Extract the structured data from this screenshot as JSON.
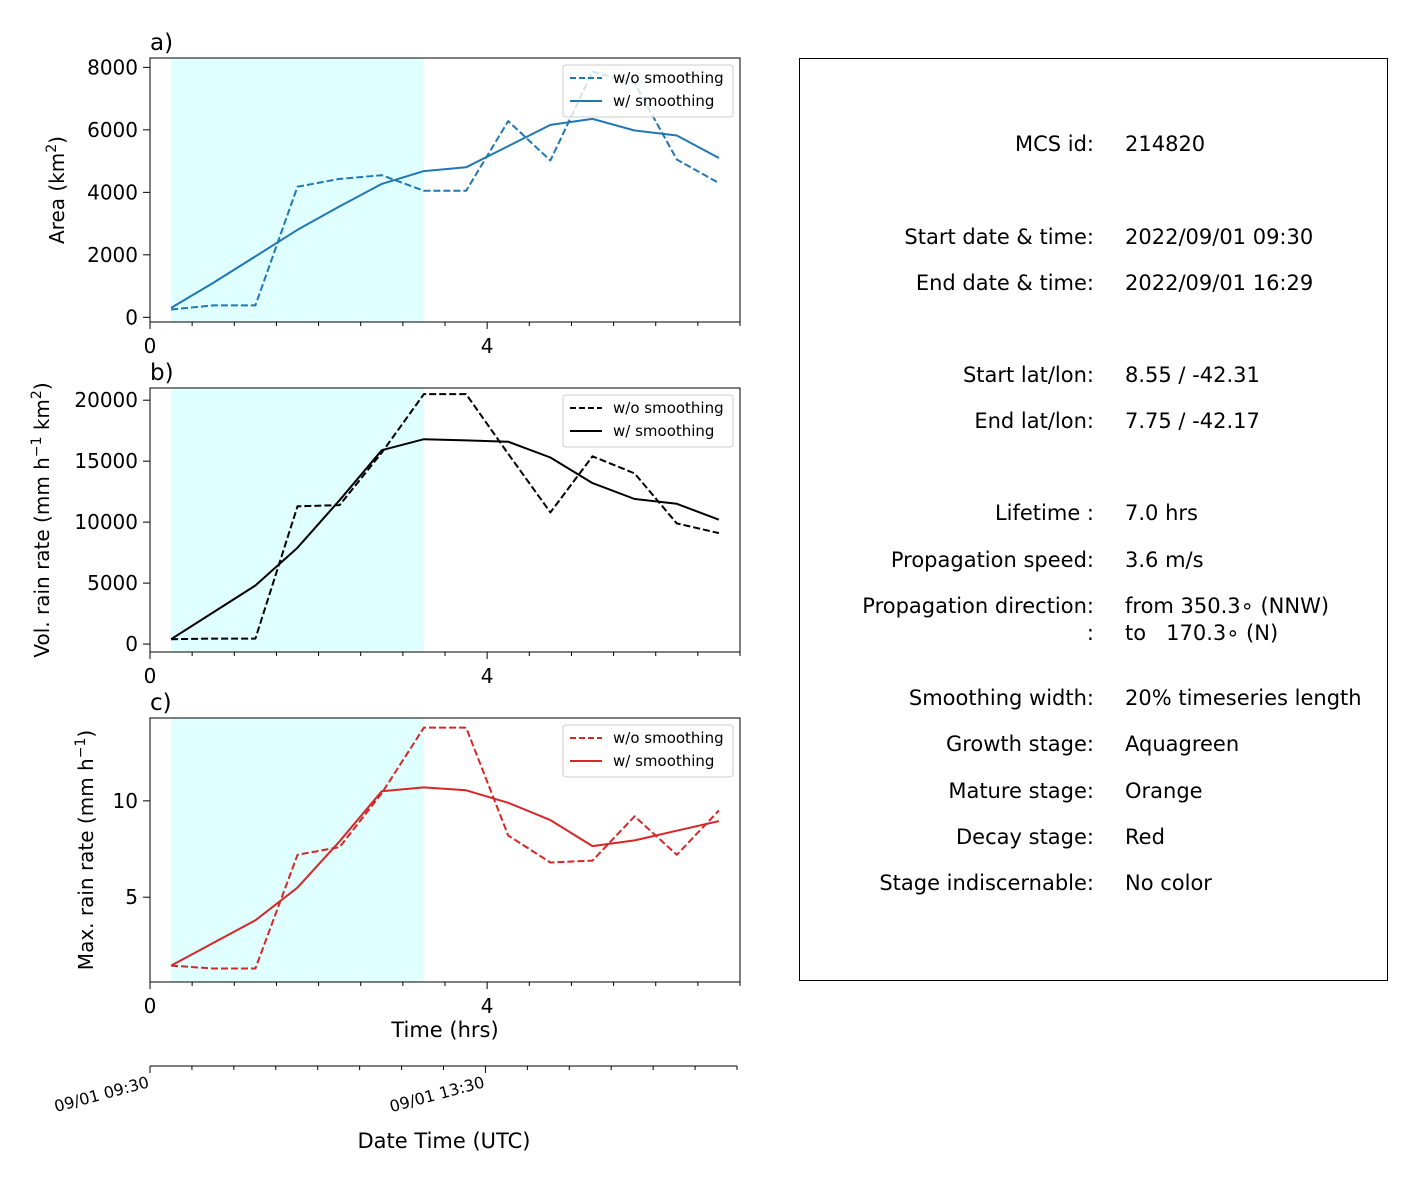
{
  "chart_data": [
    {
      "type": "line",
      "panel_letter": "a)",
      "ylabel_main": "Area  (km",
      "ylabel_sup": "2",
      "ylabel_tail": ")",
      "xlim": [
        0,
        7
      ],
      "ylim": [
        -150,
        8300
      ],
      "yticks": [
        0,
        2000,
        4000,
        6000,
        8000
      ],
      "ytick_labels": [
        "0",
        "2000",
        "4000",
        "6000",
        "8000"
      ],
      "xtick_labels": [
        "0",
        "4"
      ],
      "color": "#1f77b4",
      "legend_position": "top-right",
      "shaded_span": [
        0.25,
        3.25
      ],
      "series": [
        {
          "name": "w/o smoothing",
          "style": "dashed",
          "x": [
            0.25,
            0.75,
            1.25,
            1.75,
            2.25,
            2.75,
            3.25,
            3.75,
            4.25,
            4.75,
            5.25,
            5.75,
            6.25,
            6.75
          ],
          "values": [
            250,
            380,
            380,
            4180,
            4430,
            4550,
            4050,
            4050,
            6280,
            5020,
            7860,
            7500,
            5050,
            4300
          ]
        },
        {
          "name": "w/ smoothing",
          "style": "solid",
          "x": [
            0.25,
            0.75,
            1.25,
            1.75,
            2.25,
            2.75,
            3.25,
            3.75,
            4.25,
            4.75,
            5.25,
            5.75,
            6.25,
            6.75
          ],
          "values": [
            300,
            1100,
            1950,
            2800,
            3550,
            4270,
            4680,
            4800,
            5480,
            6160,
            6350,
            5980,
            5820,
            5100
          ]
        }
      ]
    },
    {
      "type": "line",
      "panel_letter": "b)",
      "ylabel_main": "Vol. rain rate (mm h",
      "ylabel_sup1": "−1",
      "ylabel_mid": " km",
      "ylabel_sup2": "2",
      "ylabel_tail": ")",
      "xlim": [
        0,
        7
      ],
      "ylim": [
        -650,
        21000
      ],
      "yticks": [
        0,
        5000,
        10000,
        15000,
        20000
      ],
      "ytick_labels": [
        "0",
        "5000",
        "10000",
        "15000",
        "20000"
      ],
      "xtick_labels": [
        "0",
        "4"
      ],
      "color": "#000000",
      "legend_position": "top-right",
      "shaded_span": [
        0.25,
        3.25
      ],
      "series": [
        {
          "name": "w/o smoothing",
          "style": "dashed",
          "x": [
            0.25,
            0.75,
            1.25,
            1.75,
            2.25,
            2.75,
            3.25,
            3.75,
            4.25,
            4.75,
            5.25,
            5.75,
            6.25,
            6.75
          ],
          "values": [
            400,
            450,
            450,
            11300,
            11400,
            15700,
            20500,
            20500,
            15600,
            10800,
            15400,
            14000,
            9900,
            9100
          ]
        },
        {
          "name": "w/ smoothing",
          "style": "solid",
          "x": [
            0.25,
            1.25,
            1.75,
            2.25,
            2.75,
            3.25,
            3.75,
            4.25,
            4.75,
            5.25,
            5.75,
            6.25,
            6.75
          ],
          "values": [
            400,
            4800,
            7900,
            11800,
            15900,
            16800,
            16700,
            16600,
            15300,
            13200,
            11900,
            11500,
            10200
          ]
        }
      ]
    },
    {
      "type": "line",
      "panel_letter": "c)",
      "ylabel_main": "Max. rain rate  (mm h",
      "ylabel_sup": "−1",
      "ylabel_tail": ")",
      "xlim": [
        0,
        7
      ],
      "ylim": [
        0.6,
        14.3
      ],
      "yticks": [
        5,
        10
      ],
      "ytick_labels": [
        "5",
        "10"
      ],
      "xtick_labels": [
        "0",
        "4"
      ],
      "xlabel": "Time (hrs)",
      "color": "#d62728",
      "legend_position": "top-right",
      "shaded_span": [
        0.25,
        3.25
      ],
      "series": [
        {
          "name": "w/o smoothing",
          "style": "dashed",
          "x": [
            0.25,
            0.75,
            1.25,
            1.75,
            2.25,
            2.75,
            3.25,
            3.75,
            4.25,
            4.75,
            5.25,
            5.75,
            6.25,
            6.75
          ],
          "values": [
            1.45,
            1.3,
            1.3,
            7.2,
            7.6,
            10.4,
            13.8,
            13.8,
            8.2,
            6.8,
            6.9,
            9.2,
            7.2,
            9.5
          ]
        },
        {
          "name": "w/ smoothing",
          "style": "solid",
          "x": [
            0.25,
            1.25,
            1.75,
            2.25,
            2.75,
            3.25,
            3.75,
            4.25,
            4.75,
            5.25,
            5.75,
            6.25,
            6.75
          ],
          "values": [
            1.45,
            3.8,
            5.5,
            7.9,
            10.5,
            10.7,
            10.55,
            9.9,
            9.0,
            7.65,
            7.95,
            8.45,
            8.95
          ]
        }
      ]
    }
  ],
  "datetime_axis": {
    "xlim": [
      0,
      7
    ],
    "tick_labels": [
      "09/01 09:30",
      "09/01 13:30"
    ],
    "label": "Date Time (UTC)"
  },
  "info": {
    "rows": [
      {
        "label": "MCS id:",
        "value": "214820"
      },
      {
        "label": "Start date & time:",
        "value": "2022/09/01 09:30"
      },
      {
        "label": "End date & time:",
        "value": "2022/09/01 16:29"
      },
      {
        "label": "Start lat/lon:",
        "value": "8.55 / -42.31"
      },
      {
        "label": "End lat/lon:",
        "value": "7.75 / -42.17"
      },
      {
        "label": "Lifetime :",
        "value": "7.0 hrs"
      },
      {
        "label": "Propagation speed:",
        "value": "3.6 m/s"
      },
      {
        "label": "Propagation direction:",
        "value": "from 350.3∘ (NNW)"
      },
      {
        "label": ":",
        "value": "to   170.3∘ (N)"
      },
      {
        "label": "Smoothing width:",
        "value": "20% timeseries length"
      },
      {
        "label": "Growth stage:",
        "value": "Aquagreen"
      },
      {
        "label": "Mature stage:",
        "value": "Orange"
      },
      {
        "label": "Decay stage:",
        "value": "Red"
      },
      {
        "label": "Stage indiscernable:",
        "value": "No color"
      }
    ]
  },
  "colors": {
    "growth_shade": "#e0ffff",
    "axis": "#000000"
  }
}
